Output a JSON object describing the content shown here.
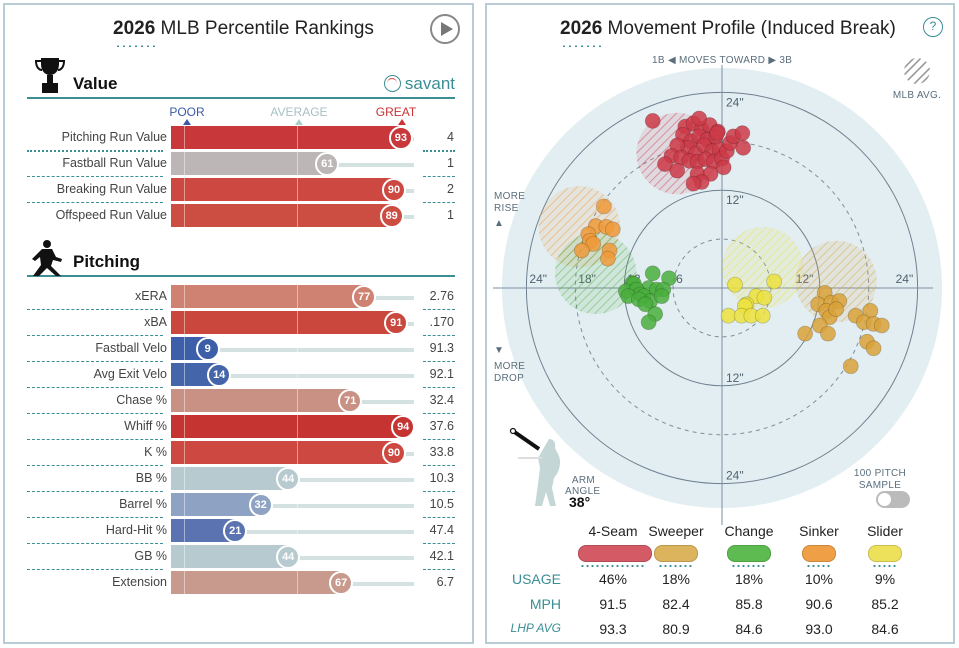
{
  "left": {
    "title_year": "2026",
    "title_rest": " MLB Percentile Rankings",
    "play_button": "play-icon",
    "value_section": {
      "label": "Value",
      "brand": "savant",
      "scale": {
        "poor": "POOR",
        "average": "AVERAGE",
        "great": "GREAT"
      },
      "rows": [
        {
          "name": "Pitching Run Value",
          "pct": 93,
          "value": "4",
          "color": "#c8383a"
        },
        {
          "name": "Fastball Run Value",
          "pct": 61,
          "value": "1",
          "color": "#bcb7b6"
        },
        {
          "name": "Breaking Run Value",
          "pct": 90,
          "value": "2",
          "color": "#cc4840"
        },
        {
          "name": "Offspeed Run Value",
          "pct": 89,
          "value": "1",
          "color": "#cc4d42"
        }
      ]
    },
    "pitching_section": {
      "label": "Pitching",
      "rows": [
        {
          "name": "xERA",
          "pct": 77,
          "value": "2.76",
          "color": "#cf8272"
        },
        {
          "name": "xBA",
          "pct": 91,
          "value": ".170",
          "color": "#c9473c"
        },
        {
          "name": "Fastball Velo",
          "pct": 9,
          "value": "91.3",
          "color": "#3d5ea8"
        },
        {
          "name": "Avg Exit Velo",
          "pct": 14,
          "value": "92.1",
          "color": "#4565ab"
        },
        {
          "name": "Chase %",
          "pct": 71,
          "value": "32.4",
          "color": "#c99184"
        },
        {
          "name": "Whiff %",
          "pct": 94,
          "value": "37.6",
          "color": "#c53431"
        },
        {
          "name": "K %",
          "pct": 90,
          "value": "33.8",
          "color": "#cc4840"
        },
        {
          "name": "BB %",
          "pct": 44,
          "value": "10.3",
          "color": "#b7cacf"
        },
        {
          "name": "Barrel %",
          "pct": 32,
          "value": "10.5",
          "color": "#8ea3c4"
        },
        {
          "name": "Hard-Hit %",
          "pct": 21,
          "value": "47.4",
          "color": "#5b73b1"
        },
        {
          "name": "GB %",
          "pct": 44,
          "value": "42.1",
          "color": "#b7cacf"
        },
        {
          "name": "Extension",
          "pct": 67,
          "value": "6.7",
          "color": "#c79a8d"
        }
      ]
    }
  },
  "right": {
    "title_year": "2026",
    "title_rest": " Movement Profile (Induced Break)",
    "help": "?",
    "moves_toward": {
      "left": "1B",
      "mid": "MOVES TOWARD",
      "right": "3B"
    },
    "mlb_avg": "MLB AVG.",
    "more_rise": [
      "MORE",
      "RISE"
    ],
    "more_drop": [
      "MORE",
      "DROP"
    ],
    "arm_angle": {
      "label1": "ARM",
      "label2": "ANGLE",
      "value": "38°"
    },
    "sample_toggle": {
      "line1": "100 PITCH",
      "line2": "SAMPLE",
      "on": false
    },
    "table": {
      "row_labels": {
        "usage": "USAGE",
        "mph": "MPH",
        "lhp": "LHP AVG"
      },
      "pitches": [
        {
          "name": "4-Seam",
          "color": "#d45a66",
          "usage": "46%",
          "mph": "91.5",
          "lhp_avg": "93.3"
        },
        {
          "name": "Sweeper",
          "color": "#dcb45e",
          "usage": "18%",
          "mph": "82.4",
          "lhp_avg": "80.9"
        },
        {
          "name": "Change",
          "color": "#5dbb51",
          "usage": "18%",
          "mph": "85.8",
          "lhp_avg": "84.6"
        },
        {
          "name": "Sinker",
          "color": "#ef9f45",
          "usage": "10%",
          "mph": "90.6",
          "lhp_avg": "93.0"
        },
        {
          "name": "Slider",
          "color": "#ede15c",
          "usage": "9%",
          "mph": "85.2",
          "lhp_avg": "84.6"
        }
      ]
    }
  },
  "chart_data": {
    "type": "scatter",
    "title": "2026 Movement Profile (Induced Break)",
    "xlabel": "Horizontal break (in), 1B ◀ moves toward ▶ 3B",
    "ylabel": "Induced vertical break (in)",
    "ring_labels": [
      "6\"",
      "12\"",
      "18\"",
      "24\""
    ],
    "rings_solid": [
      12,
      24
    ],
    "rings_dashed": [
      6,
      18
    ],
    "range": [
      -28,
      28
    ],
    "series": [
      {
        "name": "4-Seam",
        "color": "#cc3a48",
        "mlb_avg": {
          "x": -5.5,
          "y": 16.5,
          "r": 5
        },
        "points": [
          [
            -8.5,
            20.5
          ],
          [
            -4.5,
            19.8
          ],
          [
            -3.5,
            20.2
          ],
          [
            -2.5,
            19.5
          ],
          [
            -1.5,
            20.0
          ],
          [
            -0.5,
            19.2
          ],
          [
            -4.8,
            18.8
          ],
          [
            -3.8,
            18.0
          ],
          [
            -2.8,
            18.6
          ],
          [
            -1.8,
            18.2
          ],
          [
            -0.8,
            18.5
          ],
          [
            -4.2,
            17.2
          ],
          [
            -3.2,
            16.5
          ],
          [
            -2.2,
            17.5
          ],
          [
            -1.2,
            16.8
          ],
          [
            -0.3,
            17.0
          ],
          [
            -5.5,
            17.5
          ],
          [
            -6.2,
            16.2
          ],
          [
            -5.0,
            16.0
          ],
          [
            -4.0,
            15.6
          ],
          [
            -3.0,
            15.5
          ],
          [
            -2.0,
            15.8
          ],
          [
            -1.0,
            15.5
          ],
          [
            0.0,
            15.9
          ],
          [
            0.6,
            16.8
          ],
          [
            1.0,
            17.8
          ],
          [
            1.4,
            18.6
          ],
          [
            2.6,
            17.2
          ],
          [
            2.5,
            19.0
          ],
          [
            -7.0,
            15.2
          ],
          [
            -5.5,
            14.4
          ],
          [
            -3.0,
            14.0
          ],
          [
            -1.4,
            14.0
          ],
          [
            -2.5,
            13.0
          ],
          [
            -3.5,
            12.8
          ],
          [
            0.2,
            14.8
          ],
          [
            -0.6,
            19.0
          ],
          [
            -2.8,
            20.8
          ]
        ]
      },
      {
        "name": "Sinker",
        "color": "#ef9a3a",
        "mlb_avg": {
          "x": -17.5,
          "y": 7.5,
          "r": 5
        },
        "points": [
          [
            -14.5,
            10.0
          ],
          [
            -15.5,
            7.6
          ],
          [
            -14.2,
            7.5
          ],
          [
            -13.4,
            7.2
          ],
          [
            -16.4,
            6.6
          ],
          [
            -16.2,
            5.8
          ],
          [
            -15.8,
            5.4
          ],
          [
            -17.2,
            4.6
          ],
          [
            -13.8,
            4.6
          ],
          [
            -14.0,
            3.6
          ]
        ]
      },
      {
        "name": "Change",
        "color": "#4aae3d",
        "mlb_avg": {
          "x": -15.5,
          "y": 1.8,
          "r": 5
        },
        "points": [
          [
            -8.5,
            1.8
          ],
          [
            -6.5,
            1.2
          ],
          [
            -11.0,
            0.6
          ],
          [
            -10.8,
            0.5
          ],
          [
            -9.0,
            0.0
          ],
          [
            -8.0,
            -0.2
          ],
          [
            -7.2,
            -0.2
          ],
          [
            -11.8,
            -0.4
          ],
          [
            -10.5,
            -0.2
          ],
          [
            -10.0,
            -0.8
          ],
          [
            -11.5,
            -1.0
          ],
          [
            -9.6,
            -1.0
          ],
          [
            -8.8,
            -1.6
          ],
          [
            -10.2,
            -1.4
          ],
          [
            -9.4,
            -2.0
          ],
          [
            -8.2,
            -3.2
          ],
          [
            -9.0,
            -4.2
          ],
          [
            -7.4,
            -1.0
          ]
        ]
      },
      {
        "name": "Slider",
        "color": "#ece23e",
        "mlb_avg": {
          "x": 5.0,
          "y": 2.5,
          "r": 5
        },
        "points": [
          [
            1.6,
            0.4
          ],
          [
            6.4,
            0.8
          ],
          [
            4.2,
            -1.0
          ],
          [
            5.2,
            -1.2
          ],
          [
            3.0,
            -2.0
          ],
          [
            2.8,
            -2.2
          ],
          [
            0.8,
            -3.4
          ],
          [
            2.4,
            -3.4
          ],
          [
            3.6,
            -3.4
          ],
          [
            5.0,
            -3.4
          ]
        ]
      },
      {
        "name": "Sweeper",
        "color": "#d9a23a",
        "mlb_avg": {
          "x": 14.0,
          "y": 0.8,
          "r": 5
        },
        "points": [
          [
            12.6,
            -0.6
          ],
          [
            11.8,
            -2.0
          ],
          [
            13.4,
            -1.8
          ],
          [
            14.4,
            -1.6
          ],
          [
            12.8,
            -2.8
          ],
          [
            13.2,
            -3.6
          ],
          [
            14.0,
            -2.6
          ],
          [
            16.4,
            -3.4
          ],
          [
            18.2,
            -2.8
          ],
          [
            17.4,
            -4.2
          ],
          [
            18.6,
            -4.4
          ],
          [
            19.6,
            -4.6
          ],
          [
            12.0,
            -4.6
          ],
          [
            10.2,
            -5.6
          ],
          [
            13.0,
            -5.6
          ],
          [
            17.8,
            -6.6
          ],
          [
            18.6,
            -7.4
          ],
          [
            15.8,
            -9.6
          ]
        ]
      }
    ]
  }
}
